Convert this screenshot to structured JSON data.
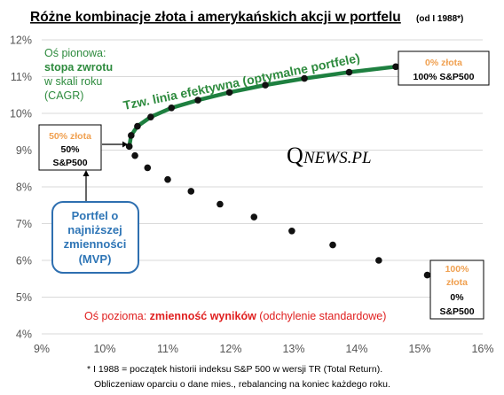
{
  "chart_data": {
    "type": "scatter",
    "title": "Różne kombinacje złota i amerykańskich akcji w portfelu",
    "subtitle": "(od I 1988*)",
    "xlim": [
      9,
      16
    ],
    "ylim": [
      4,
      12
    ],
    "x_ticks": [
      "9%",
      "10%",
      "11%",
      "12%",
      "13%",
      "14%",
      "15%",
      "16%"
    ],
    "y_ticks": [
      "4%",
      "5%",
      "6%",
      "7%",
      "8%",
      "9%",
      "10%",
      "11%",
      "12%"
    ],
    "grid": "horizontal",
    "frontier": {
      "label": "Tzw. linia efektywna (optymalne portfele)",
      "color": "#1e8040",
      "points": [
        {
          "x": 10.39,
          "y": 9.1
        },
        {
          "x": 10.42,
          "y": 9.4
        },
        {
          "x": 10.52,
          "y": 9.65
        },
        {
          "x": 10.73,
          "y": 9.9
        },
        {
          "x": 11.06,
          "y": 10.15
        },
        {
          "x": 11.48,
          "y": 10.36
        },
        {
          "x": 11.98,
          "y": 10.57
        },
        {
          "x": 12.55,
          "y": 10.77
        },
        {
          "x": 13.17,
          "y": 10.95
        },
        {
          "x": 13.88,
          "y": 11.12
        },
        {
          "x": 14.62,
          "y": 11.27
        }
      ]
    },
    "inefficient": {
      "color": "#111111",
      "points": [
        {
          "x": 10.48,
          "y": 8.85
        },
        {
          "x": 10.68,
          "y": 8.52
        },
        {
          "x": 11.0,
          "y": 8.2
        },
        {
          "x": 11.37,
          "y": 7.88
        },
        {
          "x": 11.83,
          "y": 7.53
        },
        {
          "x": 12.37,
          "y": 7.18
        },
        {
          "x": 12.97,
          "y": 6.8
        },
        {
          "x": 13.62,
          "y": 6.42
        },
        {
          "x": 14.35,
          "y": 6.0
        },
        {
          "x": 15.12,
          "y": 5.6
        }
      ]
    }
  },
  "annotations": {
    "y_axis": {
      "line1": "Oś pionowa:",
      "line2": "stopa zwrotu",
      "line3": "w skali roku",
      "line4": "(CAGR)"
    },
    "x_axis": {
      "part1": "Oś pozioma: ",
      "part2": "zmienność wyników",
      "part3": " (odchylenie standardowe)"
    },
    "box_top": {
      "gold": "0% złota",
      "sp": "100% S&P500"
    },
    "box_mid": {
      "gold": "50% złota",
      "line2": "50%",
      "line3": "S&P500"
    },
    "box_bottom": {
      "line1": "100%",
      "line2": "złota",
      "line3": "0%",
      "line4": "S&P500"
    },
    "mvp": {
      "line1": "Portfel o",
      "line2": "najniższej",
      "line3": "zmienności",
      "line4": "(MVP)"
    },
    "logo": {
      "q": "Q",
      "rest": "NEWS.PL"
    }
  },
  "footnote": {
    "line1": "* I 1988 = początek historii indeksu S&P 500 w wersji TR (Total Return).",
    "line2": "Obliczeniaw oparciu o dane mies., rebalancing na koniec każdego roku."
  },
  "colors": {
    "green_text": "#2e8b3e",
    "frontier": "#1e8040",
    "orange": "#f0a050",
    "red": "#e02020",
    "blue": "#2e75b6",
    "grid": "#d9d9d9"
  }
}
